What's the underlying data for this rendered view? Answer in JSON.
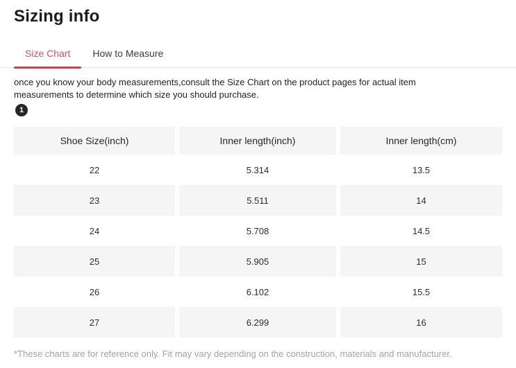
{
  "page": {
    "title": "Sizing info"
  },
  "tabs": [
    {
      "label": "Size Chart",
      "active": true
    },
    {
      "label": "How to Measure",
      "active": false
    }
  ],
  "description": "once you know your body measurements,consult the Size Chart on the product pages for actual item measurements to determine which size you should purchase.",
  "step_badge": "1",
  "size_table": {
    "columns": [
      "Shoe Size(inch)",
      "Inner length(inch)",
      "Inner length(cm)"
    ],
    "rows": [
      [
        "22",
        "5.314",
        "13.5"
      ],
      [
        "23",
        "5.511",
        "14"
      ],
      [
        "24",
        "5.708",
        "14.5"
      ],
      [
        "25",
        "5.905",
        "15"
      ],
      [
        "26",
        "6.102",
        "15.5"
      ],
      [
        "27",
        "6.299",
        "16"
      ]
    ]
  },
  "footnote": "*These charts are for reference only. Fit may vary depending on the construction, materials and manufacturer.",
  "colors": {
    "accent_text": "#c45561",
    "accent_underline": "#b54b55",
    "row_stripe": "#f5f5f5",
    "tab_border": "#eae3e3",
    "footnote_text": "#a3a3a3"
  }
}
